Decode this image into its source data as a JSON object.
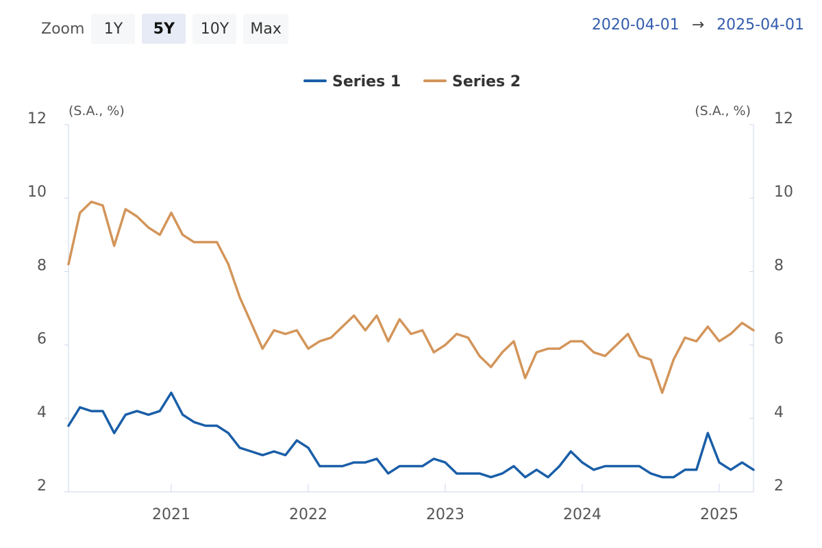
{
  "toolbar": {
    "zoom_label": "Zoom",
    "zoom_options": [
      "1Y",
      "5Y",
      "10Y",
      "Max"
    ],
    "active_zoom": "5Y",
    "range_start": "2020-04-01",
    "range_arrow": "→",
    "range_end": "2025-04-01"
  },
  "chart_data": {
    "type": "line",
    "left_axis": {
      "unit": "(S.A., %)",
      "ticks": [
        "12",
        "10",
        "8",
        "6",
        "4",
        "2"
      ],
      "ylim": [
        2,
        12
      ]
    },
    "right_axis": {
      "unit": "(S.A., %)",
      "ticks": [
        "12",
        "10",
        "8",
        "6",
        "4",
        "2"
      ],
      "ylim": [
        2,
        12
      ]
    },
    "x_ticks": [
      "2021",
      "2022",
      "2023",
      "2024",
      "2025"
    ],
    "x_start": "2020-04",
    "x_end": "2025-04",
    "legend_position": "top-center",
    "grid": false,
    "series": [
      {
        "name": "Series 1",
        "color": "#1a5ea8",
        "x": [
          "2020-04",
          "2020-05",
          "2020-06",
          "2020-07",
          "2020-08",
          "2020-09",
          "2020-10",
          "2020-11",
          "2020-12",
          "2021-01",
          "2021-02",
          "2021-03",
          "2021-04",
          "2021-05",
          "2021-06",
          "2021-07",
          "2021-08",
          "2021-09",
          "2021-10",
          "2021-11",
          "2021-12",
          "2022-01",
          "2022-02",
          "2022-03",
          "2022-04",
          "2022-05",
          "2022-06",
          "2022-07",
          "2022-08",
          "2022-09",
          "2022-10",
          "2022-11",
          "2022-12",
          "2023-01",
          "2023-02",
          "2023-03",
          "2023-04",
          "2023-05",
          "2023-06",
          "2023-07",
          "2023-08",
          "2023-09",
          "2023-10",
          "2023-11",
          "2023-12",
          "2024-01",
          "2024-02",
          "2024-03",
          "2024-04",
          "2024-05",
          "2024-06",
          "2024-07",
          "2024-08",
          "2024-09",
          "2024-10",
          "2024-11",
          "2024-12",
          "2025-01",
          "2025-02",
          "2025-03",
          "2025-04"
        ],
        "values": [
          3.8,
          4.3,
          4.2,
          4.2,
          3.6,
          4.1,
          4.2,
          4.1,
          4.2,
          4.7,
          4.1,
          3.9,
          3.8,
          3.8,
          3.6,
          3.2,
          3.1,
          3.0,
          3.1,
          3.0,
          3.4,
          3.2,
          2.7,
          2.7,
          2.7,
          2.8,
          2.8,
          2.9,
          2.5,
          2.7,
          2.7,
          2.7,
          2.9,
          2.8,
          2.5,
          2.5,
          2.5,
          2.4,
          2.5,
          2.7,
          2.4,
          2.6,
          2.4,
          2.7,
          3.1,
          2.8,
          2.6,
          2.7,
          2.7,
          2.7,
          2.7,
          2.5,
          2.4,
          2.4,
          2.6,
          2.6,
          3.6,
          2.8,
          2.6,
          2.8,
          2.6
        ]
      },
      {
        "name": "Series 2",
        "color": "#d3955a",
        "x": [
          "2020-04",
          "2020-05",
          "2020-06",
          "2020-07",
          "2020-08",
          "2020-09",
          "2020-10",
          "2020-11",
          "2020-12",
          "2021-01",
          "2021-02",
          "2021-03",
          "2021-04",
          "2021-05",
          "2021-06",
          "2021-07",
          "2021-08",
          "2021-09",
          "2021-10",
          "2021-11",
          "2021-12",
          "2022-01",
          "2022-02",
          "2022-03",
          "2022-04",
          "2022-05",
          "2022-06",
          "2022-07",
          "2022-08",
          "2022-09",
          "2022-10",
          "2022-11",
          "2022-12",
          "2023-01",
          "2023-02",
          "2023-03",
          "2023-04",
          "2023-05",
          "2023-06",
          "2023-07",
          "2023-08",
          "2023-09",
          "2023-10",
          "2023-11",
          "2023-12",
          "2024-01",
          "2024-02",
          "2024-03",
          "2024-04",
          "2024-05",
          "2024-06",
          "2024-07",
          "2024-08",
          "2024-09",
          "2024-10",
          "2024-11",
          "2024-12",
          "2025-01",
          "2025-02",
          "2025-03",
          "2025-04"
        ],
        "values": [
          8.2,
          9.6,
          9.9,
          9.8,
          8.7,
          9.7,
          9.5,
          9.2,
          9.0,
          9.6,
          9.0,
          8.8,
          8.8,
          8.8,
          8.2,
          7.3,
          6.6,
          5.9,
          6.4,
          6.3,
          6.4,
          5.9,
          6.1,
          6.2,
          6.5,
          6.8,
          6.4,
          6.8,
          6.1,
          6.7,
          6.3,
          6.4,
          5.8,
          6.0,
          6.3,
          6.2,
          5.7,
          5.4,
          5.8,
          6.1,
          5.1,
          5.8,
          5.9,
          5.9,
          6.1,
          6.1,
          5.8,
          5.7,
          6.0,
          6.3,
          5.7,
          5.6,
          4.7,
          5.6,
          6.2,
          6.1,
          6.5,
          6.1,
          6.3,
          6.6,
          6.4
        ]
      }
    ]
  }
}
